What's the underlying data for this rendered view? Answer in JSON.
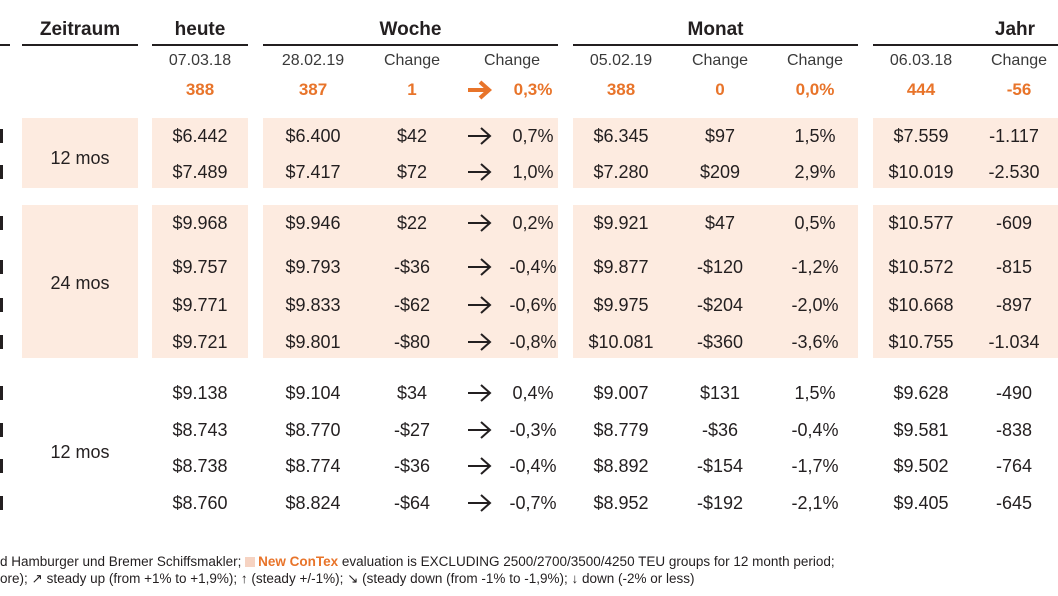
{
  "headers": {
    "zeitraum": "Zeitraum",
    "heute": "heute",
    "woche": "Woche",
    "monat": "Monat",
    "jahr": "Jahr"
  },
  "subheaders": {
    "heute_date": "07.03.18",
    "woche_date": "28.02.19",
    "woche_change": "Change",
    "woche_change_pct": "Change",
    "monat_date": "05.02.19",
    "monat_change": "Change",
    "monat_change_pct": "Change",
    "jahr_date": "06.03.18",
    "jahr_change": "Change"
  },
  "index_row": {
    "heute": "388",
    "woche_value": "387",
    "woche_change": "1",
    "woche_pct": "0,3%",
    "monat_value": "388",
    "monat_change": "0",
    "monat_pct": "0,0%",
    "jahr_value": "444",
    "jahr_change": "-56"
  },
  "groups": [
    {
      "label": "12 mos"
    },
    {
      "label": "24 mos"
    },
    {
      "label": "12 mos"
    }
  ],
  "rows": [
    {
      "heute": "$6.442",
      "w_val": "$6.400",
      "w_chg": "$42",
      "w_pct": "0,7%",
      "m_val": "$6.345",
      "m_chg": "$97",
      "m_pct": "1,5%",
      "j_val": "$7.559",
      "j_chg": "-1.117"
    },
    {
      "heute": "$7.489",
      "w_val": "$7.417",
      "w_chg": "$72",
      "w_pct": "1,0%",
      "m_val": "$7.280",
      "m_chg": "$209",
      "m_pct": "2,9%",
      "j_val": "$10.019",
      "j_chg": "-2.530"
    },
    {
      "heute": "$9.968",
      "w_val": "$9.946",
      "w_chg": "$22",
      "w_pct": "0,2%",
      "m_val": "$9.921",
      "m_chg": "$47",
      "m_pct": "0,5%",
      "j_val": "$10.577",
      "j_chg": "-609"
    },
    {
      "heute": "$9.757",
      "w_val": "$9.793",
      "w_chg": "-$36",
      "w_pct": "-0,4%",
      "m_val": "$9.877",
      "m_chg": "-$120",
      "m_pct": "-1,2%",
      "j_val": "$10.572",
      "j_chg": "-815"
    },
    {
      "heute": "$9.771",
      "w_val": "$9.833",
      "w_chg": "-$62",
      "w_pct": "-0,6%",
      "m_val": "$9.975",
      "m_chg": "-$204",
      "m_pct": "-2,0%",
      "j_val": "$10.668",
      "j_chg": "-897"
    },
    {
      "heute": "$9.721",
      "w_val": "$9.801",
      "w_chg": "-$80",
      "w_pct": "-0,8%",
      "m_val": "$10.081",
      "m_chg": "-$360",
      "m_pct": "-3,6%",
      "j_val": "$10.755",
      "j_chg": "-1.034"
    },
    {
      "heute": "$9.138",
      "w_val": "$9.104",
      "w_chg": "$34",
      "w_pct": "0,4%",
      "m_val": "$9.007",
      "m_chg": "$131",
      "m_pct": "1,5%",
      "j_val": "$9.628",
      "j_chg": "-490"
    },
    {
      "heute": "$8.743",
      "w_val": "$8.770",
      "w_chg": "-$27",
      "w_pct": "-0,3%",
      "m_val": "$8.779",
      "m_chg": "-$36",
      "m_pct": "-0,4%",
      "j_val": "$9.581",
      "j_chg": "-838"
    },
    {
      "heute": "$8.738",
      "w_val": "$8.774",
      "w_chg": "-$36",
      "w_pct": "-0,4%",
      "m_val": "$8.892",
      "m_chg": "-$154",
      "m_pct": "-1,7%",
      "j_val": "$9.502",
      "j_chg": "-764"
    },
    {
      "heute": "$8.760",
      "w_val": "$8.824",
      "w_chg": "-$64",
      "w_pct": "-0,7%",
      "m_val": "$8.952",
      "m_chg": "-$192",
      "m_pct": "-2,1%",
      "j_val": "$9.405",
      "j_chg": "-645"
    }
  ],
  "footnote": {
    "line1_a": "d Hamburger und Bremer Schiffsmakler; ",
    "line1_hl": "New ConTex",
    "line1_b": " evaluation is EXCLUDING 2500/2700/3500/4250 TEU groups for 12 month period;",
    "line2": "ore); ↗ steady up (from +1% to +1,9%); ↑ (steady +/-1%); ↘ (steady down (from -1% to -1,9%); ↓ down (-2% or less)"
  },
  "colors": {
    "accent": "#e8742a",
    "band": "#fdebe0",
    "text": "#231f20"
  }
}
